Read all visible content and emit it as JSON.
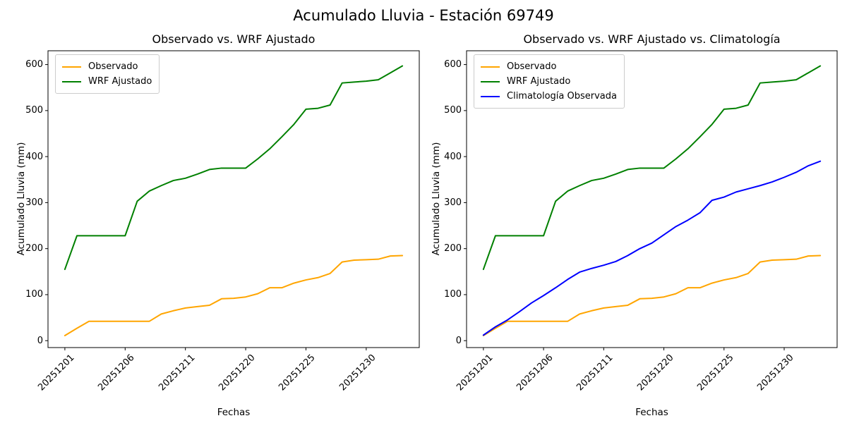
{
  "figure": {
    "title": "Acumulado Lluvia - Estación 69749",
    "background": "#ffffff"
  },
  "colors": {
    "observado": "#FFA500",
    "wrf_ajustado": "#008000",
    "climatologia": "#0000FF",
    "axis": "#000000",
    "legend_border": "#cccccc"
  },
  "chart_data": [
    {
      "type": "line",
      "title": "Observado vs. WRF Ajustado",
      "xlabel": "Fechas",
      "ylabel": "Acumulado Lluvia (mm)",
      "n_points": 29,
      "x_is_category_index": true,
      "x_tick_positions": [
        0,
        5,
        10,
        15,
        20,
        25
      ],
      "x_tick_labels": [
        "20251201",
        "20251206",
        "20251211",
        "20251220",
        "20251225",
        "20251230"
      ],
      "y_ticks": [
        0,
        100,
        200,
        300,
        400,
        500,
        600
      ],
      "xlim": [
        -1.4,
        29.4
      ],
      "ylim": [
        -15,
        630
      ],
      "grid": false,
      "legend_position": "upper left",
      "series": [
        {
          "name": "Observado",
          "color": "#FFA500",
          "values": [
            11,
            27,
            42,
            42,
            42,
            42,
            42,
            42,
            58,
            65,
            71,
            74,
            77,
            91,
            92,
            95,
            102,
            115,
            115,
            125,
            132,
            137,
            146,
            171,
            175,
            176,
            177,
            184,
            185
          ]
        },
        {
          "name": "WRF Ajustado",
          "color": "#008000",
          "values": [
            155,
            228,
            228,
            228,
            228,
            228,
            303,
            325,
            337,
            348,
            353,
            362,
            372,
            375,
            375,
            375,
            395,
            417,
            443,
            470,
            503,
            505,
            512,
            560,
            562,
            564,
            567,
            582,
            597
          ]
        }
      ]
    },
    {
      "type": "line",
      "title": "Observado vs. WRF Ajustado vs. Climatología",
      "xlabel": "Fechas",
      "ylabel": "Acumulado Lluvia (mm)",
      "n_points": 29,
      "x_is_category_index": true,
      "x_tick_positions": [
        0,
        5,
        10,
        15,
        20,
        25
      ],
      "x_tick_labels": [
        "20251201",
        "20251206",
        "20251211",
        "20251220",
        "20251225",
        "20251230"
      ],
      "y_ticks": [
        0,
        100,
        200,
        300,
        400,
        500,
        600
      ],
      "xlim": [
        -1.4,
        29.4
      ],
      "ylim": [
        -15,
        630
      ],
      "grid": false,
      "legend_position": "upper left",
      "series": [
        {
          "name": "Observado",
          "color": "#FFA500",
          "values": [
            11,
            27,
            42,
            42,
            42,
            42,
            42,
            42,
            58,
            65,
            71,
            74,
            77,
            91,
            92,
            95,
            102,
            115,
            115,
            125,
            132,
            137,
            146,
            171,
            175,
            176,
            177,
            184,
            185
          ]
        },
        {
          "name": "WRF Ajustado",
          "color": "#008000",
          "values": [
            155,
            228,
            228,
            228,
            228,
            228,
            303,
            325,
            337,
            348,
            353,
            362,
            372,
            375,
            375,
            375,
            395,
            417,
            443,
            470,
            503,
            505,
            512,
            560,
            562,
            564,
            567,
            582,
            597
          ]
        },
        {
          "name": "Climatología Observada",
          "color": "#0000FF",
          "values": [
            12,
            30,
            45,
            63,
            82,
            98,
            115,
            133,
            149,
            157,
            164,
            172,
            185,
            200,
            212,
            230,
            248,
            262,
            278,
            305,
            312,
            323,
            330,
            337,
            345,
            355,
            366,
            380,
            390
          ]
        }
      ]
    }
  ]
}
